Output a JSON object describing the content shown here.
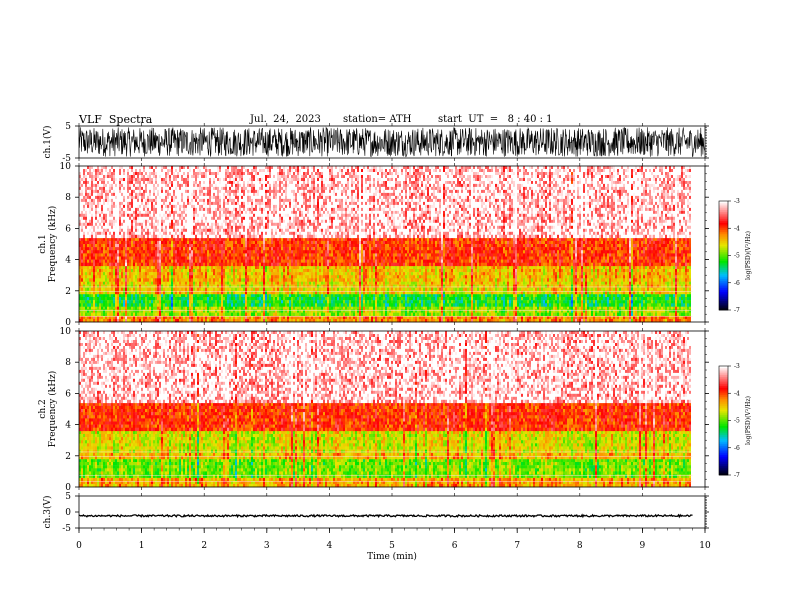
{
  "header": {
    "title": "VLF  Spectra",
    "date": "Jul.  24,  2023",
    "station": "station= ATH",
    "start": "start  UT  =   8 : 40 : 1"
  },
  "chart_data": [
    {
      "type": "line",
      "ylabel": "ch.1(V)",
      "ylim": [
        -5,
        5
      ],
      "ytick_labels": [
        "5",
        "-5"
      ],
      "x_range_min": [
        0,
        10
      ],
      "description_series": "dense oscillating waveform, amplitude ~ ±4 V"
    },
    {
      "type": "heatmap",
      "ylabel": "ch.1\nFrequency (kHz)",
      "ylabel_lines": [
        "ch.1",
        "Frequency  (kHz)"
      ],
      "ylim": [
        0,
        10
      ],
      "ytick_labels": [
        "0",
        "2",
        "4",
        "6",
        "8",
        "10"
      ],
      "x_range_min": [
        0,
        9.8
      ],
      "colorbar": {
        "label": "log(PSD)(V²/Hz)",
        "range": [
          -7,
          -3
        ],
        "tick_labels": [
          "-3",
          "-4",
          "-5",
          "-6",
          "-7"
        ],
        "colors": [
          "#000000",
          "#0000ff",
          "#00c0ff",
          "#00ff00",
          "#ffff00",
          "#ff0000",
          "#ffffff"
        ]
      },
      "bands_khz": [
        {
          "from": 0,
          "to": 0.4,
          "level": -4.2
        },
        {
          "from": 0.4,
          "to": 1.0,
          "level": -4.8
        },
        {
          "from": 1.0,
          "to": 1.8,
          "level": -5.2
        },
        {
          "from": 1.8,
          "to": 2.6,
          "level": -4.5
        },
        {
          "from": 2.6,
          "to": 3.6,
          "level": -4.4
        },
        {
          "from": 3.6,
          "to": 5.4,
          "level": -3.9
        },
        {
          "from": 5.4,
          "to": 10,
          "level": -3.3
        }
      ]
    },
    {
      "type": "heatmap",
      "ylabel": "ch.2\nFrequency (kHz)",
      "ylabel_lines": [
        "ch.2",
        "Frequency  (kHz)"
      ],
      "ylim": [
        0,
        10
      ],
      "ytick_labels": [
        "0",
        "2",
        "4",
        "6",
        "8",
        "10"
      ],
      "x_range_min": [
        0,
        9.8
      ],
      "colorbar": {
        "label": "log(PSD)(V²/Hz)",
        "range": [
          -7,
          -3
        ],
        "tick_labels": [
          "-3",
          "-4",
          "-5",
          "-6",
          "-7"
        ],
        "colors": [
          "#000000",
          "#0000ff",
          "#00c0ff",
          "#00ff00",
          "#ffff00",
          "#ff0000",
          "#ffffff"
        ]
      },
      "bands_khz": [
        {
          "from": 0,
          "to": 0.6,
          "level": -4.3
        },
        {
          "from": 0.6,
          "to": 1.8,
          "level": -4.9
        },
        {
          "from": 1.8,
          "to": 2.2,
          "level": -4.4
        },
        {
          "from": 2.2,
          "to": 3.6,
          "level": -4.6
        },
        {
          "from": 3.6,
          "to": 5.4,
          "level": -3.9
        },
        {
          "from": 5.4,
          "to": 10,
          "level": -3.3
        }
      ]
    },
    {
      "type": "line",
      "ylabel": "ch.3(V)",
      "ylim": [
        -5,
        5
      ],
      "ytick_labels": [
        "5",
        "0",
        "-5"
      ],
      "x_range_min": [
        0,
        9.8
      ],
      "mean_value": -1.2,
      "noise_amplitude": 0.3
    }
  ],
  "xaxis": {
    "label": "Time  (min)",
    "ticks": [
      0,
      1,
      2,
      3,
      4,
      5,
      6,
      7,
      8,
      9,
      10
    ],
    "tick_labels": [
      "0",
      "1",
      "2",
      "3",
      "4",
      "5",
      "6",
      "7",
      "8",
      "9",
      "10"
    ],
    "xlim": [
      0,
      10
    ]
  }
}
